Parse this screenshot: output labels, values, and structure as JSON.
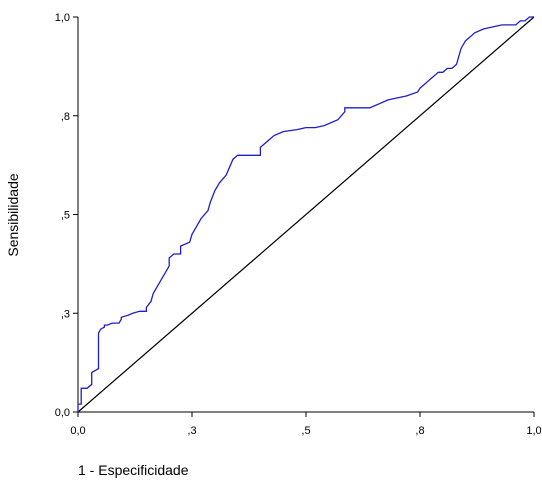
{
  "chart_data": {
    "type": "line",
    "xlabel": "1 - Especificidade",
    "ylabel": "Sensibilidade",
    "xlim": [
      0,
      1
    ],
    "ylim": [
      0,
      1
    ],
    "x_ticks": [
      {
        "value": 0.0,
        "label": "0,0"
      },
      {
        "value": 0.25,
        "label": ",3"
      },
      {
        "value": 0.5,
        "label": ",5"
      },
      {
        "value": 0.75,
        "label": ",8"
      },
      {
        "value": 1.0,
        "label": "1,0"
      }
    ],
    "y_ticks": [
      {
        "value": 0.0,
        "label": "0,0"
      },
      {
        "value": 0.25,
        "label": ",3"
      },
      {
        "value": 0.5,
        "label": ",5"
      },
      {
        "value": 0.75,
        "label": ",8"
      },
      {
        "value": 1.0,
        "label": "1,0"
      }
    ],
    "grid": false,
    "colors": {
      "roc": "#1f1fc8",
      "reference": "#000000"
    },
    "series": [
      {
        "x": [
          0.0,
          0.0,
          0.007,
          0.007,
          0.02,
          0.03,
          0.03,
          0.045,
          0.045,
          0.05,
          0.058,
          0.058,
          0.064,
          0.075,
          0.09,
          0.095,
          0.095,
          0.11,
          0.12,
          0.135,
          0.15,
          0.15,
          0.16,
          0.165,
          0.175,
          0.185,
          0.2,
          0.2,
          0.21,
          0.225,
          0.225,
          0.245,
          0.25,
          0.26,
          0.27,
          0.285,
          0.29,
          0.3,
          0.31,
          0.325,
          0.34,
          0.35,
          0.36,
          0.37,
          0.38,
          0.39,
          0.4,
          0.4,
          0.41,
          0.42,
          0.43,
          0.45,
          0.48,
          0.5,
          0.52,
          0.54,
          0.57,
          0.585,
          0.585,
          0.62,
          0.64,
          0.66,
          0.68,
          0.72,
          0.745,
          0.75,
          0.76,
          0.77,
          0.78,
          0.79,
          0.8,
          0.81,
          0.82,
          0.83,
          0.84,
          0.845,
          0.85,
          0.86,
          0.87,
          0.89,
          0.91,
          0.93,
          0.95,
          0.96,
          0.97,
          0.98,
          0.99,
          1.0
        ],
        "y": [
          0.0,
          0.02,
          0.02,
          0.06,
          0.06,
          0.07,
          0.1,
          0.11,
          0.2,
          0.21,
          0.215,
          0.22,
          0.22,
          0.225,
          0.225,
          0.235,
          0.24,
          0.245,
          0.25,
          0.255,
          0.255,
          0.265,
          0.28,
          0.3,
          0.32,
          0.34,
          0.37,
          0.39,
          0.4,
          0.4,
          0.42,
          0.43,
          0.45,
          0.47,
          0.49,
          0.51,
          0.53,
          0.56,
          0.58,
          0.6,
          0.64,
          0.65,
          0.65,
          0.65,
          0.65,
          0.65,
          0.65,
          0.67,
          0.68,
          0.69,
          0.7,
          0.71,
          0.715,
          0.72,
          0.72,
          0.725,
          0.74,
          0.76,
          0.77,
          0.77,
          0.77,
          0.78,
          0.79,
          0.8,
          0.81,
          0.82,
          0.83,
          0.84,
          0.85,
          0.86,
          0.86,
          0.87,
          0.87,
          0.88,
          0.92,
          0.93,
          0.94,
          0.95,
          0.96,
          0.97,
          0.975,
          0.98,
          0.98,
          0.98,
          0.99,
          0.99,
          1.0,
          1.0
        ]
      },
      {
        "x": [
          0.0,
          1.0
        ],
        "y": [
          0.0,
          1.0
        ]
      }
    ]
  }
}
